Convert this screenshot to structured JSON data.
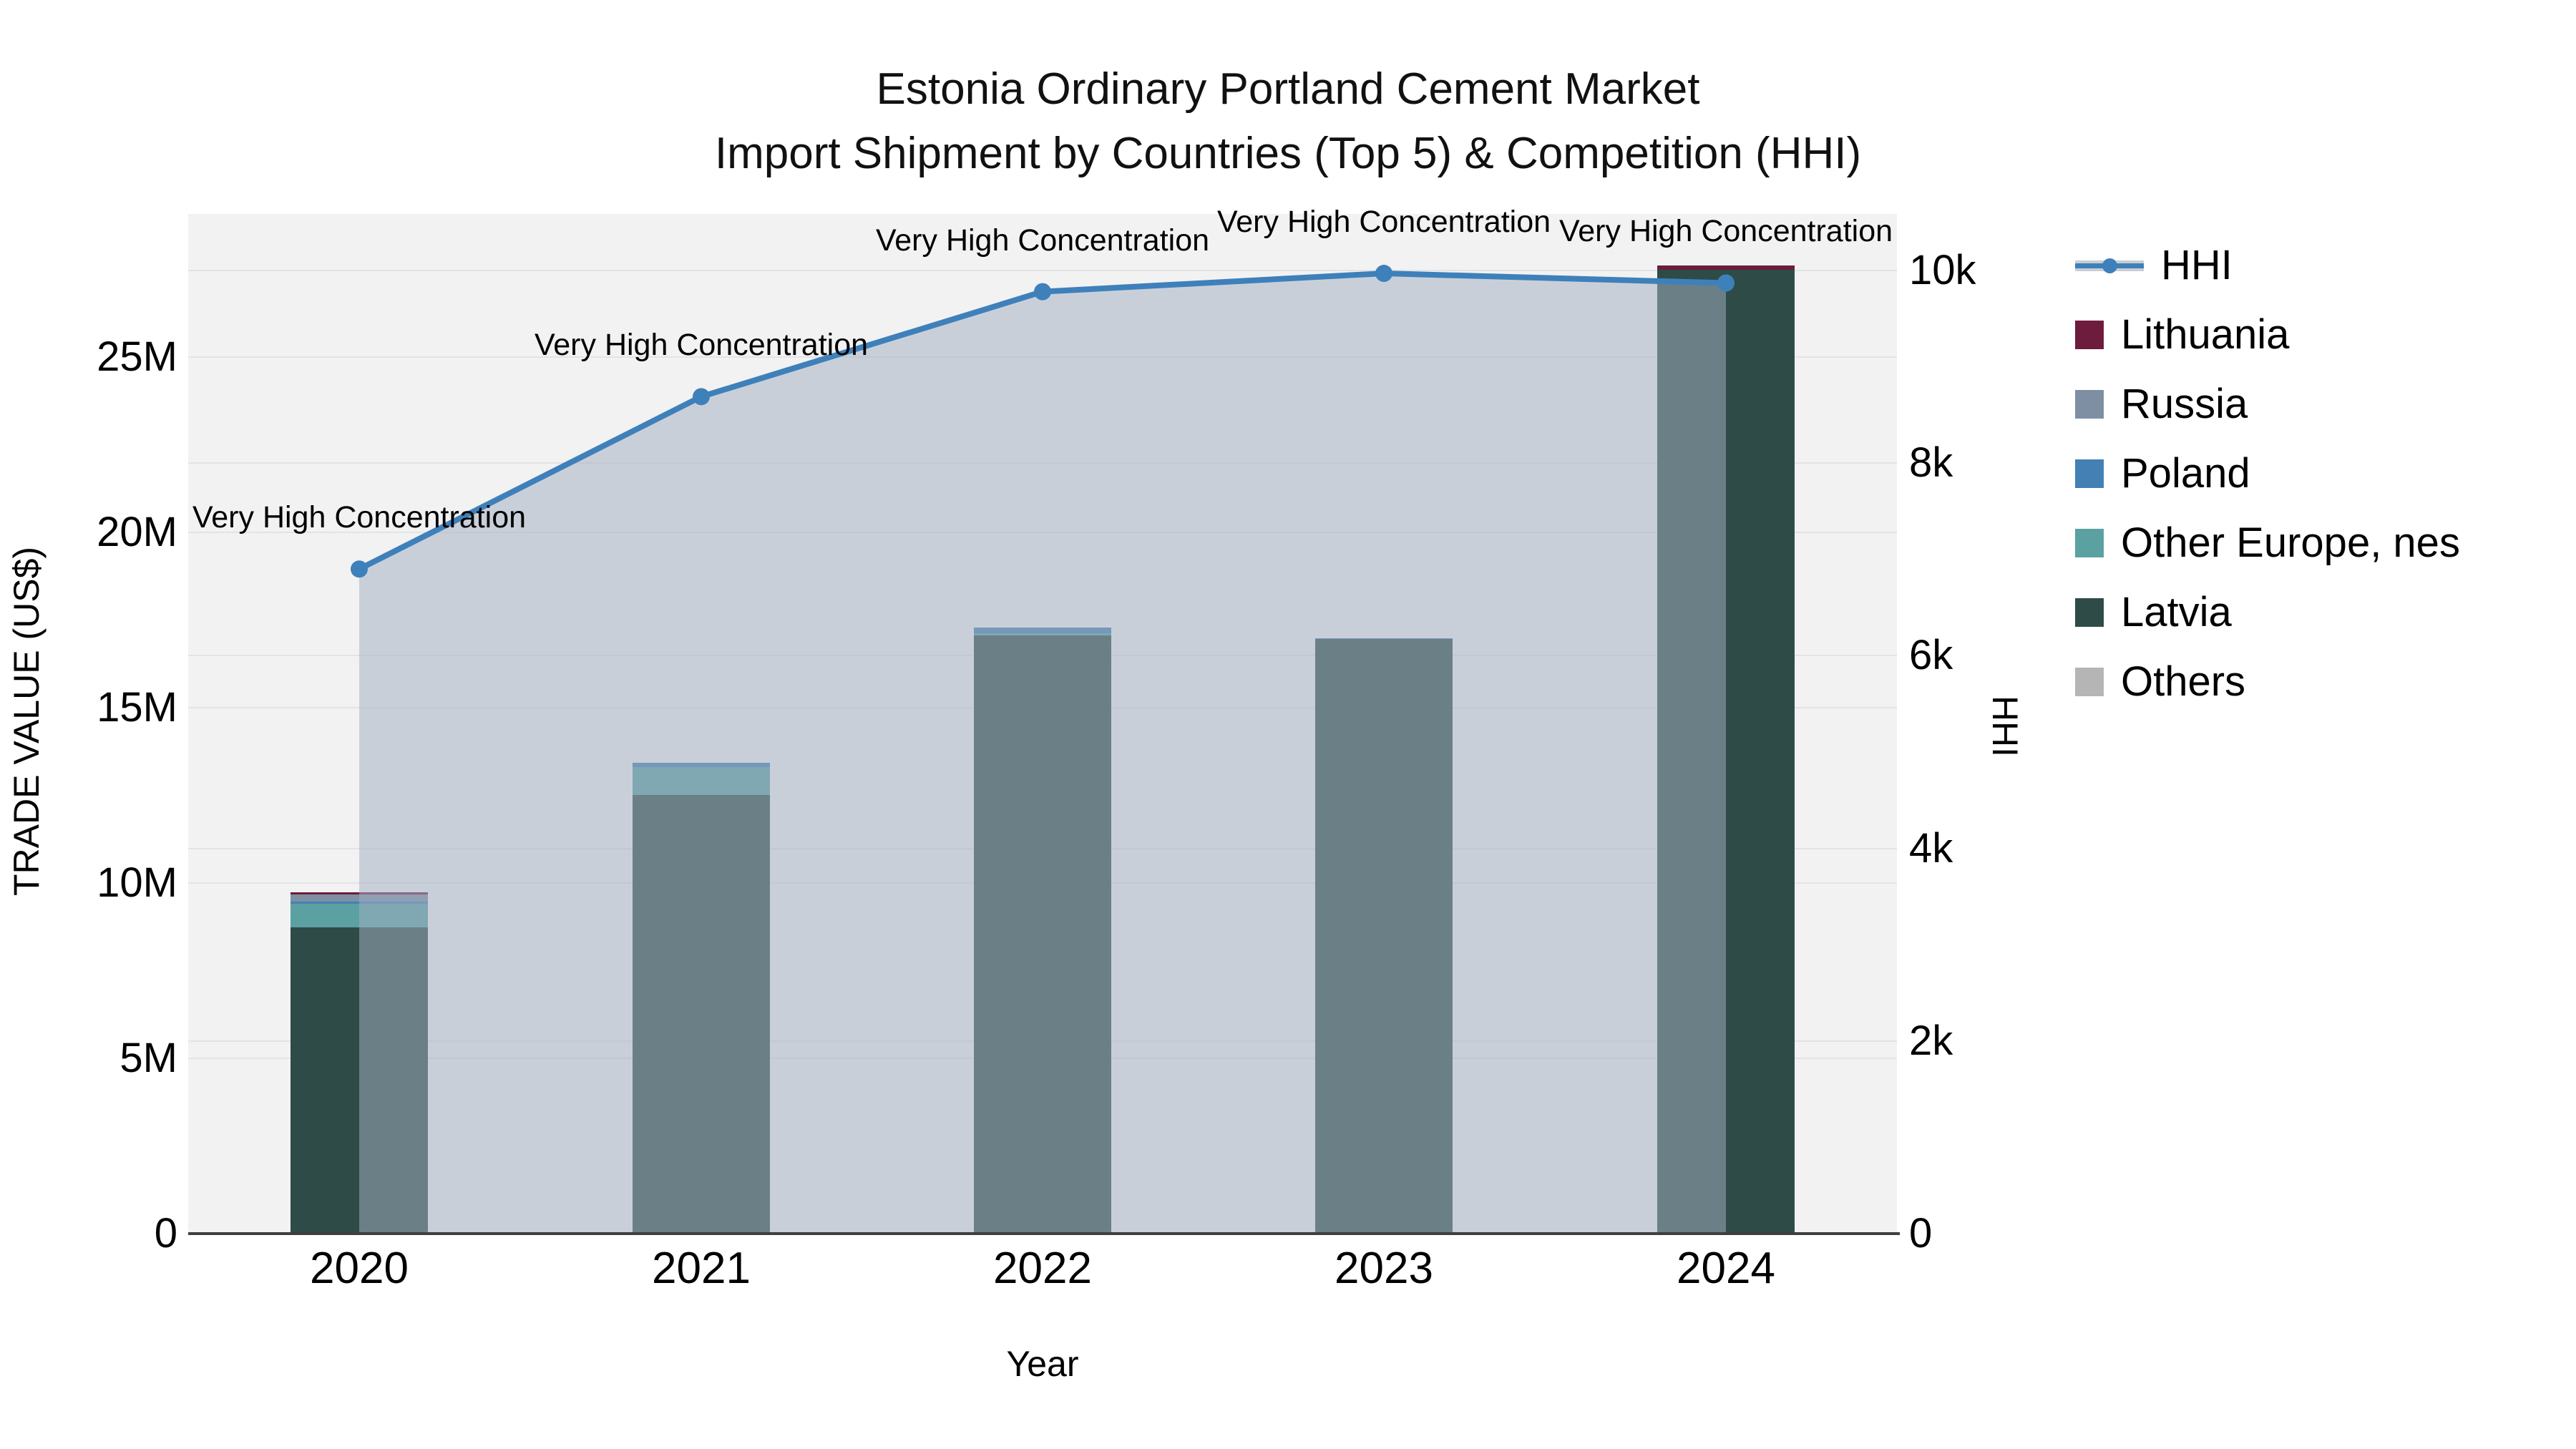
{
  "title": {
    "line1": "Estonia Ordinary Portland Cement Market",
    "line2": "Import Shipment by Countries (Top 5) & Competition (HHI)"
  },
  "axes": {
    "x": {
      "title": "Year",
      "ticks": [
        "2020",
        "2021",
        "2022",
        "2023",
        "2024"
      ]
    },
    "y_left": {
      "title": "TRADE VALUE (US$)",
      "ticks": [
        "0",
        "5M",
        "10M",
        "15M",
        "20M",
        "25M"
      ]
    },
    "y_right": {
      "title": "HHI",
      "ticks": [
        "0",
        "2k",
        "4k",
        "6k",
        "8k",
        "10k"
      ]
    }
  },
  "legend": {
    "items": [
      {
        "label": "HHI",
        "type": "line",
        "color": "#3e80ba",
        "band_color": "#c9cdd4"
      },
      {
        "label": "Lithuania",
        "type": "bar",
        "color": "#6e1c3d"
      },
      {
        "label": "Russia",
        "type": "bar",
        "color": "#7e8fa3"
      },
      {
        "label": "Poland",
        "type": "bar",
        "color": "#4480b4"
      },
      {
        "label": "Other Europe, nes",
        "type": "bar",
        "color": "#5ba1a1"
      },
      {
        "label": "Latvia",
        "type": "bar",
        "color": "#2e4b47"
      },
      {
        "label": "Others",
        "type": "bar",
        "color": "#b5b5b5"
      }
    ]
  },
  "annotations": [
    "Very High Concentration",
    "Very High Concentration",
    "Very High Concentration",
    "Very High Concentration",
    "Very High Concentration"
  ],
  "chart_data": {
    "type": "combo: stacked-bar (left axis) + line-area (right axis)",
    "title": "Estonia Ordinary Portland Cement Market — Import Shipment by Countries (Top 5) & Competition (HHI)",
    "x": [
      "2020",
      "2021",
      "2022",
      "2023",
      "2024"
    ],
    "bar_unit": "Trade value, millions US$",
    "stack_order_bottom_to_top": [
      "Latvia",
      "Other Europe, nes",
      "Poland",
      "Russia",
      "Lithuania",
      "Others"
    ],
    "series": [
      {
        "name": "Latvia",
        "color": "#2e4b47",
        "values": [
          8.73,
          12.51,
          17.06,
          16.95,
          27.48
        ]
      },
      {
        "name": "Other Europe, nes",
        "color": "#5ba1a1",
        "values": [
          0.67,
          0.8,
          0.06,
          0.0,
          0.0
        ]
      },
      {
        "name": "Poland",
        "color": "#4480b4",
        "values": [
          0.06,
          0.12,
          0.16,
          0.03,
          0.0
        ]
      },
      {
        "name": "Russia",
        "color": "#7e8fa3",
        "values": [
          0.22,
          0.0,
          0.0,
          0.0,
          0.0
        ]
      },
      {
        "name": "Lithuania",
        "color": "#6e1c3d",
        "values": [
          0.05,
          0.0,
          0.0,
          0.0,
          0.13
        ]
      },
      {
        "name": "Others",
        "color": "#b5b5b5",
        "values": [
          0.0,
          0.0,
          0.0,
          0.0,
          0.0
        ]
      }
    ],
    "bar_totals": [
      9.73,
      13.43,
      17.28,
      16.98,
      27.61
    ],
    "line": {
      "name": "HHI",
      "axis": "right",
      "color": "#3e80ba",
      "area_fill": "rgba(163,174,193,0.52)",
      "values": [
        6900,
        8690,
        9780,
        9970,
        9870
      ],
      "point_annotation": "Very High Concentration"
    },
    "y_left_ticks": {
      "labels": [
        "0",
        "5M",
        "10M",
        "15M",
        "20M",
        "25M"
      ],
      "values": [
        0,
        5,
        10,
        15,
        20,
        25
      ]
    },
    "y_right_ticks": {
      "labels": [
        "0",
        "2k",
        "4k",
        "6k",
        "8k",
        "10k"
      ],
      "values": [
        0,
        2000,
        4000,
        6000,
        8000,
        10000
      ]
    },
    "y_left_range_millions": [
      0,
      29.1
    ],
    "y_right_range": [
      0,
      10590
    ],
    "grid": true,
    "legend_position": "right",
    "plot_background": "#f2f2f2"
  }
}
